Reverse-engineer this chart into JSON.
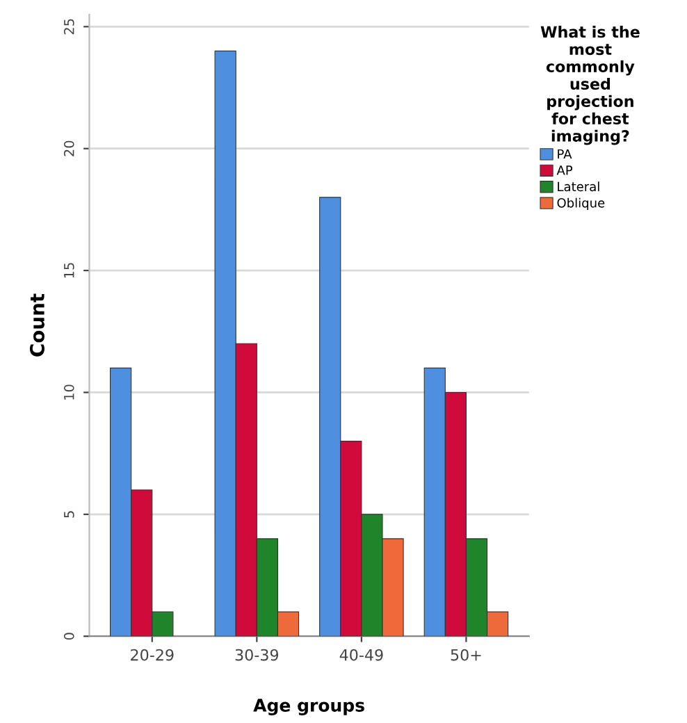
{
  "chart_data": {
    "type": "bar",
    "xlabel": "Age groups",
    "ylabel": "Count",
    "legend_title": "What is the most commonly used projection for chest imaging?",
    "categories": [
      "20-29",
      "30-39",
      "40-49",
      "50+"
    ],
    "series": [
      {
        "name": "PA",
        "color": "#4f8fe0",
        "values": [
          11,
          24,
          18,
          11
        ]
      },
      {
        "name": "AP",
        "color": "#d10a3c",
        "values": [
          6,
          12,
          8,
          10
        ]
      },
      {
        "name": "Lateral",
        "color": "#20842a",
        "values": [
          1,
          4,
          5,
          4
        ]
      },
      {
        "name": "Oblique",
        "color": "#ee6a3a",
        "values": [
          null,
          1,
          4,
          1
        ]
      }
    ],
    "ylim": [
      0,
      25.5
    ],
    "yticks": [
      0,
      5,
      10,
      15,
      20,
      25
    ],
    "grid": "y",
    "legend": "right"
  }
}
